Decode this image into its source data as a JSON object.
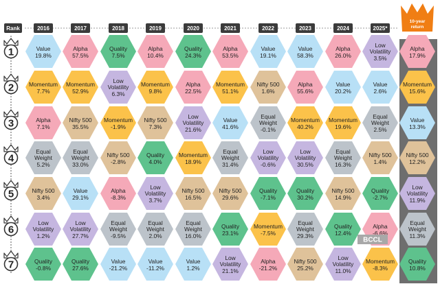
{
  "chart_data": {
    "type": "table",
    "rank_header": "Rank",
    "ranks": [
      "1",
      "2",
      "3",
      "4",
      "5",
      "6",
      "7"
    ],
    "years": [
      "2016",
      "2017",
      "2018",
      "2019",
      "2020",
      "2021",
      "2022",
      "2023",
      "2024",
      "2025*"
    ],
    "ten_year_label": "10-year return",
    "watermark": "BCCL",
    "category_colors": {
      "Value": "#b8e0f6",
      "Alpha": "#f5a9b8",
      "Quality": "#5ec28d",
      "Momentum": "#fbc24a",
      "Low Volatility": "#c5b6e0",
      "Nifty 500": "#dfc29a",
      "Equal Weight": "#bcc3ca"
    },
    "columns": [
      {
        "year": "2016",
        "cells": [
          {
            "name": "Value",
            "value": "19.8%"
          },
          {
            "name": "Momentum",
            "value": "7.7%"
          },
          {
            "name": "Alpha",
            "value": "7.1%"
          },
          {
            "name": "Equal Weight",
            "value": "5.2%"
          },
          {
            "name": "Nifty 500",
            "value": "3.4%"
          },
          {
            "name": "Low Volatility",
            "value": "1.2%"
          },
          {
            "name": "Quality",
            "value": "-0.8%"
          }
        ]
      },
      {
        "year": "2017",
        "cells": [
          {
            "name": "Alpha",
            "value": "57.5%"
          },
          {
            "name": "Momentum",
            "value": "52.9%"
          },
          {
            "name": "Nifty 500",
            "value": "35.5%"
          },
          {
            "name": "Equal Weight",
            "value": "33.0%"
          },
          {
            "name": "Value",
            "value": "29.1%"
          },
          {
            "name": "Low Volatility",
            "value": "27.7%"
          },
          {
            "name": "Quality",
            "value": "27.6%"
          }
        ]
      },
      {
        "year": "2018",
        "cells": [
          {
            "name": "Quality",
            "value": "7.5%"
          },
          {
            "name": "Low Volatility",
            "value": "6.3%"
          },
          {
            "name": "Momentum",
            "value": "-1.9%"
          },
          {
            "name": "Nifty 500",
            "value": "-2.8%"
          },
          {
            "name": "Alpha",
            "value": "-8.3%"
          },
          {
            "name": "Equal Weight",
            "value": "-9.5%"
          },
          {
            "name": "Value",
            "value": "-21.2%"
          }
        ]
      },
      {
        "year": "2019",
        "cells": [
          {
            "name": "Alpha",
            "value": "10.4%"
          },
          {
            "name": "Momentum",
            "value": "9.8%"
          },
          {
            "name": "Nifty 500",
            "value": "7.3%"
          },
          {
            "name": "Quality",
            "value": "4.0%"
          },
          {
            "name": "Low Volatility",
            "value": "3.7%"
          },
          {
            "name": "Equal Weight",
            "value": "2.0%"
          },
          {
            "name": "Value",
            "value": "-11.2%"
          }
        ]
      },
      {
        "year": "2020",
        "cells": [
          {
            "name": "Quality",
            "value": "24.3%"
          },
          {
            "name": "Alpha",
            "value": "22.5%"
          },
          {
            "name": "Low Volatility",
            "value": "21.6%"
          },
          {
            "name": "Momentum",
            "value": "18.9%"
          },
          {
            "name": "Nifty 500",
            "value": "16.5%"
          },
          {
            "name": "Equal Weight",
            "value": "16.0%"
          },
          {
            "name": "Value",
            "value": "1.2%"
          }
        ]
      },
      {
        "year": "2021",
        "cells": [
          {
            "name": "Alpha",
            "value": "53.5%"
          },
          {
            "name": "Momentum",
            "value": "51.1%"
          },
          {
            "name": "Value",
            "value": "41.6%"
          },
          {
            "name": "Equal Weight",
            "value": "31.4%"
          },
          {
            "name": "Nifty 500",
            "value": "29.6%"
          },
          {
            "name": "Quality",
            "value": "23.1%"
          },
          {
            "name": "Low Volatility",
            "value": "21.1%"
          }
        ]
      },
      {
        "year": "2022",
        "cells": [
          {
            "name": "Value",
            "value": "19.1%"
          },
          {
            "name": "Nifty 500",
            "value": "1.6%"
          },
          {
            "name": "Equal Weight",
            "value": "-0.1%"
          },
          {
            "name": "Low Volatility",
            "value": "-0.6%"
          },
          {
            "name": "Quality",
            "value": "-7.1%"
          },
          {
            "name": "Momentum",
            "value": "-7.5%"
          },
          {
            "name": "Alpha",
            "value": "-21.2%"
          }
        ]
      },
      {
        "year": "2023",
        "cells": [
          {
            "name": "Value",
            "value": "58.3%"
          },
          {
            "name": "Alpha",
            "value": "55.6%"
          },
          {
            "name": "Momentum",
            "value": "40.2%"
          },
          {
            "name": "Low Volatility",
            "value": "30.5%"
          },
          {
            "name": "Quality",
            "value": "30.2%"
          },
          {
            "name": "Equal Weight",
            "value": "29.3%"
          },
          {
            "name": "Nifty 500",
            "value": "25.2%"
          }
        ]
      },
      {
        "year": "2024",
        "cells": [
          {
            "name": "Alpha",
            "value": "26.0%"
          },
          {
            "name": "Value",
            "value": "20.2%"
          },
          {
            "name": "Momentum",
            "value": "19.6%"
          },
          {
            "name": "Equal Weight",
            "value": "16.3%"
          },
          {
            "name": "Nifty 500",
            "value": "14.9%"
          },
          {
            "name": "Quality",
            "value": "12.4%"
          },
          {
            "name": "Low Volatility",
            "value": "11.0%"
          }
        ]
      },
      {
        "year": "2025*",
        "cells": [
          {
            "name": "Low Volatility",
            "value": "3.5%"
          },
          {
            "name": "Value",
            "value": "2.6%"
          },
          {
            "name": "Equal Weight",
            "value": "2.5%"
          },
          {
            "name": "Nifty 500",
            "value": "1.4%"
          },
          {
            "name": "Quality",
            "value": "-2.7%"
          },
          {
            "name": "Alpha",
            "value": "-6.6%"
          },
          {
            "name": "Momentum",
            "value": "-8.3%"
          }
        ]
      },
      {
        "year": "10-year return",
        "cells": [
          {
            "name": "Alpha",
            "value": "17.9%"
          },
          {
            "name": "Momentum",
            "value": "15.6%"
          },
          {
            "name": "Value",
            "value": "13.3%"
          },
          {
            "name": "Nifty 500",
            "value": "12.2%"
          },
          {
            "name": "Low Volatility",
            "value": "11.9%"
          },
          {
            "name": "Equal Weight",
            "value": "11.3%"
          },
          {
            "name": "Quality",
            "value": "10.8%"
          }
        ]
      }
    ]
  }
}
